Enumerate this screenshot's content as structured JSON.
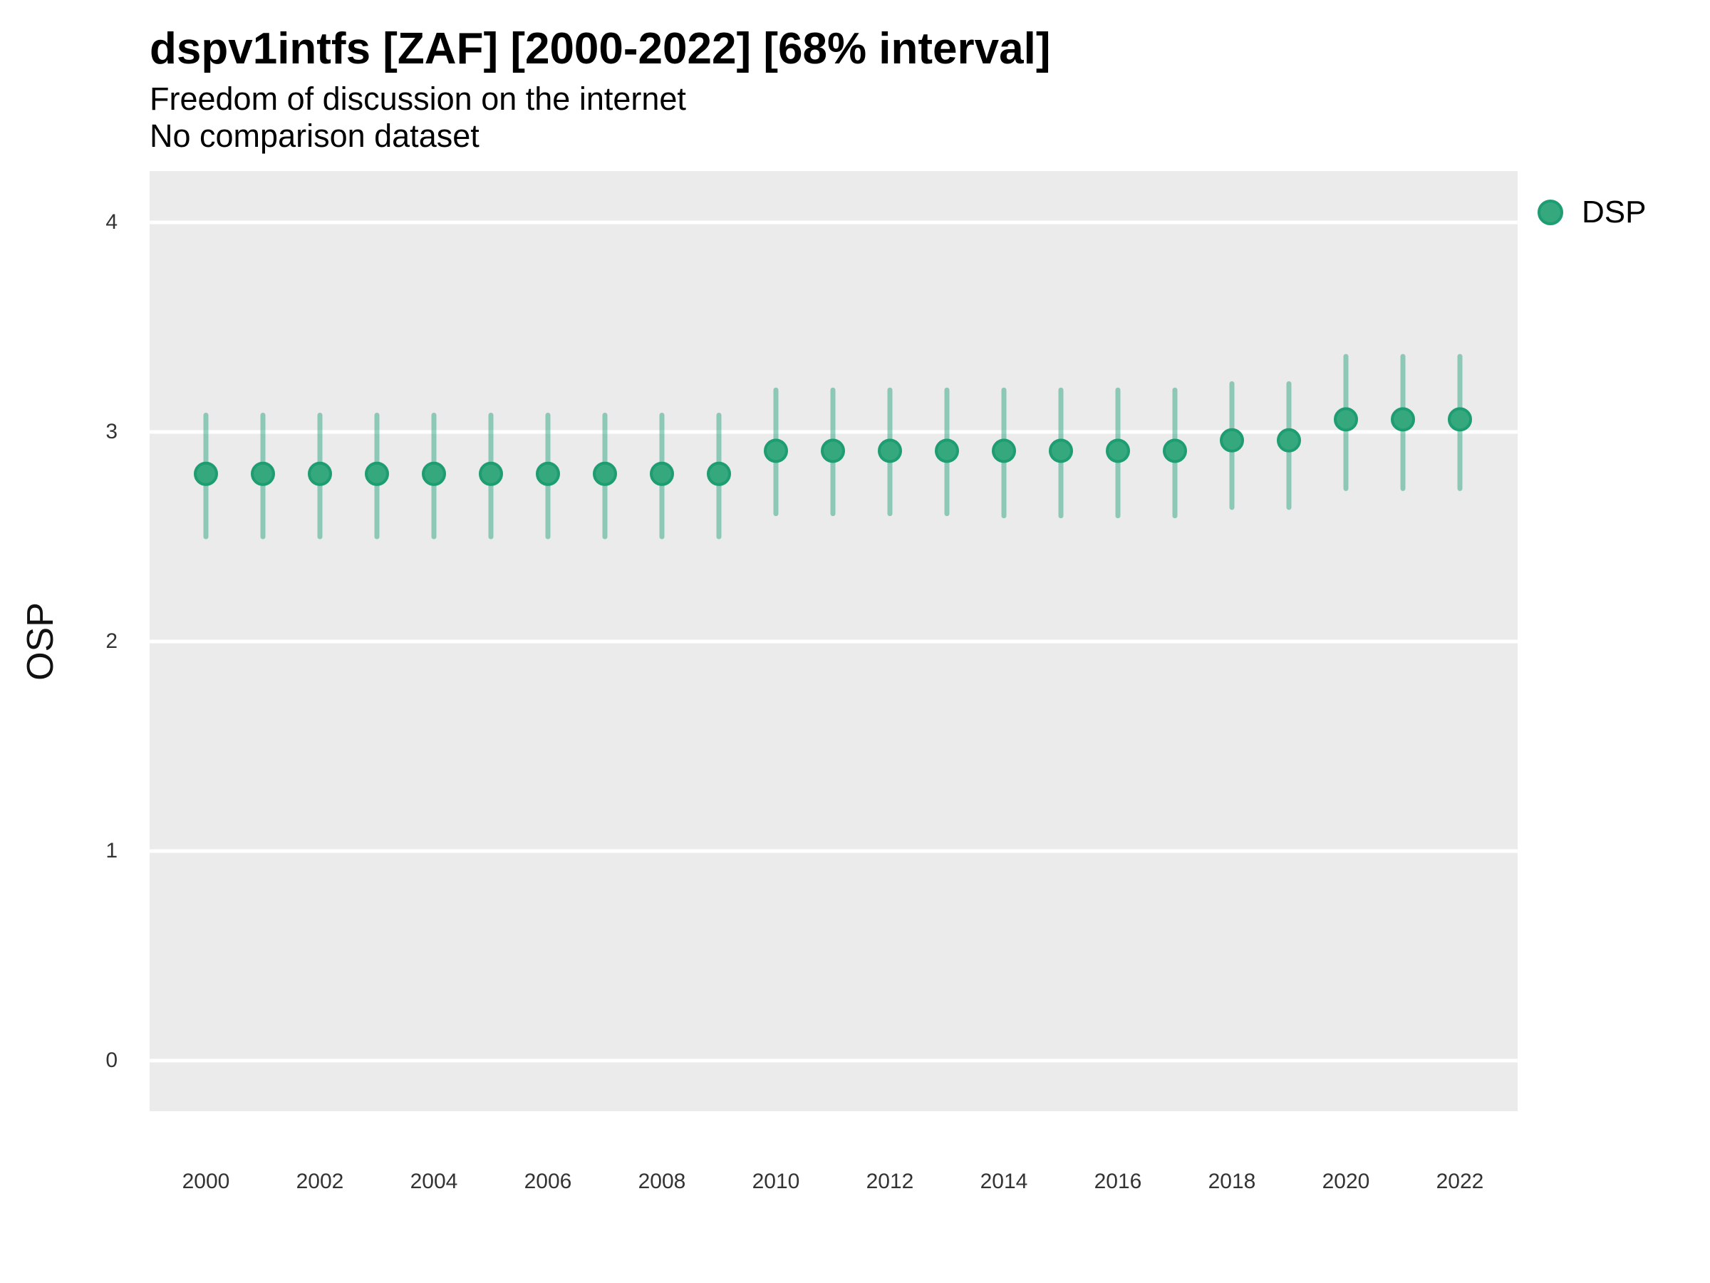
{
  "chart_data": {
    "type": "scatter",
    "variant": "pointrange",
    "title": "dspv1intfs [ZAF] [2000-2022] [68% interval]",
    "subtitle": "Freedom of discussion on the internet",
    "subtitle2": "No comparison dataset",
    "ylabel": "OSP",
    "xlabel": "",
    "interval_label": "68% interval",
    "grid": "major-horizontal-only",
    "x_ticks": [
      2000,
      2002,
      2004,
      2006,
      2008,
      2010,
      2012,
      2014,
      2016,
      2018,
      2020,
      2022
    ],
    "y_ticks": [
      0,
      1,
      2,
      3,
      4
    ],
    "ylim": [
      -0.25,
      4.25
    ],
    "xlim": [
      1999,
      2023
    ],
    "legend": {
      "position": "right",
      "entries": [
        {
          "label": "DSP",
          "marker": "circle"
        }
      ]
    },
    "colors": {
      "point_fill": "#36a87e",
      "point_stroke": "#1e9c72",
      "interval_bar": "rgba(27,158,119,0.45)",
      "panel_bg": "#ebebeb",
      "gridline": "#ffffff",
      "tick_text": "#333333",
      "text": "#000000"
    },
    "series": [
      {
        "name": "DSP",
        "points": [
          {
            "year": 2000,
            "est": 2.8,
            "lo": 2.5,
            "hi": 3.08
          },
          {
            "year": 2001,
            "est": 2.8,
            "lo": 2.5,
            "hi": 3.08
          },
          {
            "year": 2002,
            "est": 2.8,
            "lo": 2.5,
            "hi": 3.08
          },
          {
            "year": 2003,
            "est": 2.8,
            "lo": 2.5,
            "hi": 3.08
          },
          {
            "year": 2004,
            "est": 2.8,
            "lo": 2.5,
            "hi": 3.08
          },
          {
            "year": 2005,
            "est": 2.8,
            "lo": 2.5,
            "hi": 3.08
          },
          {
            "year": 2006,
            "est": 2.8,
            "lo": 2.5,
            "hi": 3.08
          },
          {
            "year": 2007,
            "est": 2.8,
            "lo": 2.5,
            "hi": 3.08
          },
          {
            "year": 2008,
            "est": 2.8,
            "lo": 2.5,
            "hi": 3.08
          },
          {
            "year": 2009,
            "est": 2.8,
            "lo": 2.5,
            "hi": 3.08
          },
          {
            "year": 2010,
            "est": 2.91,
            "lo": 2.61,
            "hi": 3.2
          },
          {
            "year": 2011,
            "est": 2.91,
            "lo": 2.61,
            "hi": 3.2
          },
          {
            "year": 2012,
            "est": 2.91,
            "lo": 2.61,
            "hi": 3.2
          },
          {
            "year": 2013,
            "est": 2.91,
            "lo": 2.61,
            "hi": 3.2
          },
          {
            "year": 2014,
            "est": 2.91,
            "lo": 2.6,
            "hi": 3.2
          },
          {
            "year": 2015,
            "est": 2.91,
            "lo": 2.6,
            "hi": 3.2
          },
          {
            "year": 2016,
            "est": 2.91,
            "lo": 2.6,
            "hi": 3.2
          },
          {
            "year": 2017,
            "est": 2.91,
            "lo": 2.6,
            "hi": 3.2
          },
          {
            "year": 2018,
            "est": 2.96,
            "lo": 2.64,
            "hi": 3.23
          },
          {
            "year": 2019,
            "est": 2.96,
            "lo": 2.64,
            "hi": 3.23
          },
          {
            "year": 2020,
            "est": 3.06,
            "lo": 2.73,
            "hi": 3.36
          },
          {
            "year": 2021,
            "est": 3.06,
            "lo": 2.73,
            "hi": 3.36
          },
          {
            "year": 2022,
            "est": 3.06,
            "lo": 2.73,
            "hi": 3.36
          }
        ]
      }
    ]
  }
}
